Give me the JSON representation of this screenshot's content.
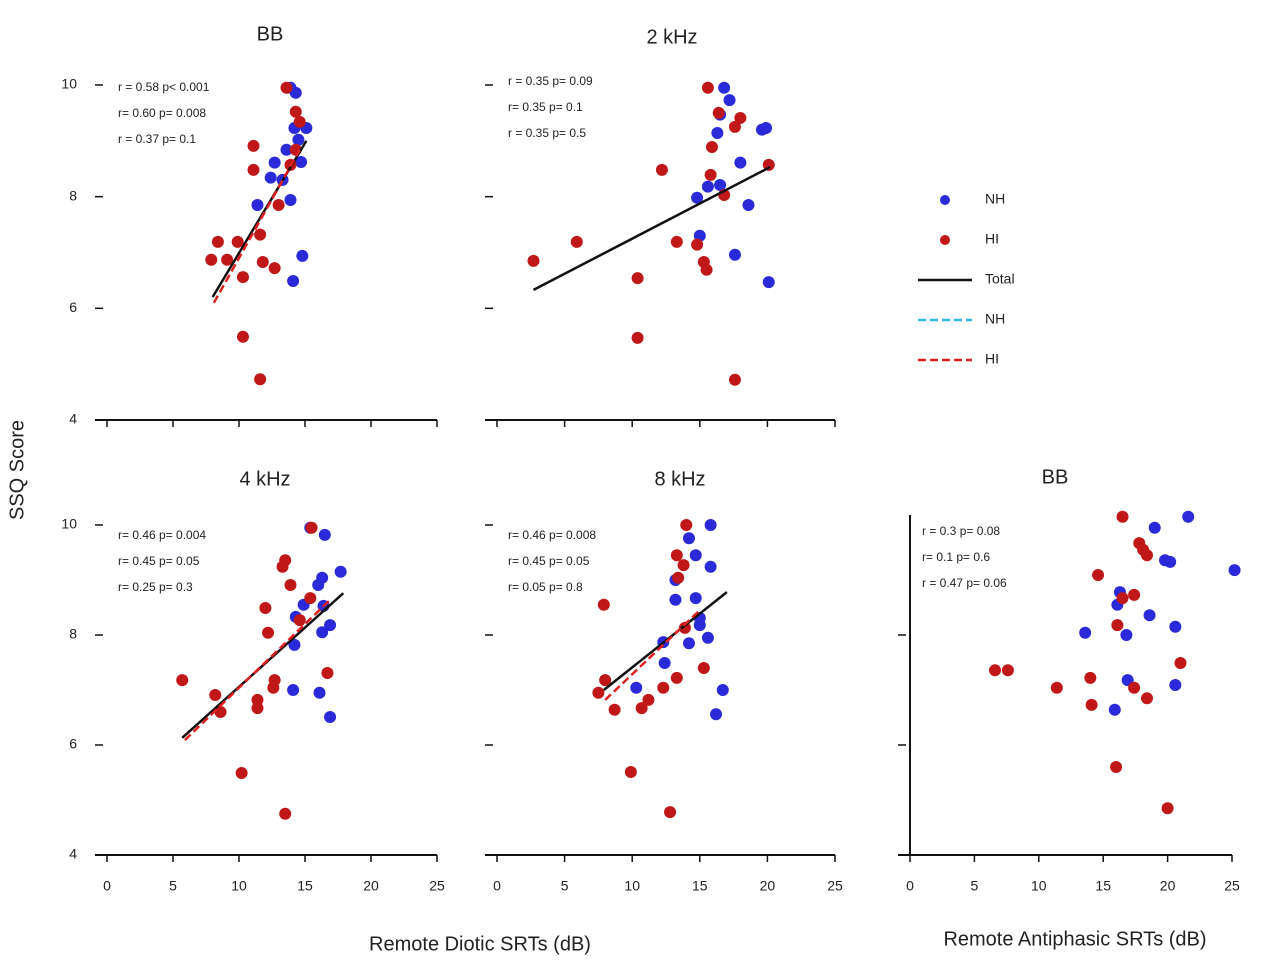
{
  "chart_data": [
    {
      "type": "scatter",
      "title": "BB",
      "xlim": [
        0,
        25
      ],
      "ylim": [
        4,
        10
      ],
      "xticks": [
        0,
        5,
        10,
        15,
        20,
        25
      ],
      "yticks": [
        4,
        6,
        8,
        10
      ],
      "show_xtick_labels": false,
      "show_ytick_labels": true,
      "y_axis_line": false,
      "annotations": [
        {
          "text": "r = 0.58 p< 0.001",
          "color": "#111111"
        },
        {
          "text": "r= 0.60 p= 0.008",
          "color": "#c01818"
        },
        {
          "text": "r = 0.37 p= 0.1",
          "color": "#2a2ad8"
        }
      ],
      "series": [
        {
          "name": "NH",
          "color": "#2a2ad8",
          "x": [
            13.9,
            14.3,
            14.2,
            15.1,
            14.5,
            13.6,
            14.7,
            12.7,
            12.4,
            13.3,
            11.4,
            13.9,
            14.8,
            14.1
          ],
          "y": [
            9.95,
            9.86,
            9.23,
            9.23,
            9.02,
            8.84,
            8.62,
            8.61,
            8.34,
            8.3,
            7.85,
            7.94,
            6.94,
            6.49
          ]
        },
        {
          "name": "HI",
          "color": "#c01818",
          "x": [
            13.6,
            14.3,
            14.6,
            14.3,
            11.1,
            11.1,
            13.9,
            13.0,
            8.4,
            9.9,
            11.6,
            7.9,
            9.1,
            11.8,
            10.3,
            12.7,
            10.3,
            11.6
          ],
          "y": [
            9.95,
            9.52,
            9.34,
            8.84,
            8.91,
            8.48,
            8.57,
            7.85,
            7.19,
            7.19,
            7.32,
            6.87,
            6.87,
            6.83,
            6.56,
            6.72,
            5.49,
            4.73
          ]
        }
      ],
      "fits": [
        {
          "name": "Total",
          "color": "#111111",
          "dash": false,
          "x": [
            8.0,
            15.1
          ],
          "y": [
            6.2,
            9.0
          ]
        },
        {
          "name": "HI",
          "color": "#e02020",
          "dash": true,
          "x": [
            8.1,
            14.6
          ],
          "y": [
            6.1,
            8.84
          ]
        }
      ]
    },
    {
      "type": "scatter",
      "title": "2 kHz",
      "xlim": [
        0,
        25
      ],
      "ylim": [
        4,
        10
      ],
      "xticks": [
        0,
        5,
        10,
        15,
        20,
        25
      ],
      "yticks": [
        4,
        6,
        8,
        10
      ],
      "show_xtick_labels": false,
      "show_ytick_labels": false,
      "y_axis_line": false,
      "annotations": [
        {
          "text": "r = 0.35 p= 0.09",
          "color": "#111111"
        },
        {
          "text": "r= 0.35 p= 0.1",
          "color": "#c01818"
        },
        {
          "text": "r = 0.35 p= 0.5",
          "color": "#2a2ad8"
        }
      ],
      "series": [
        {
          "name": "NH",
          "color": "#2a2ad8",
          "x": [
            16.8,
            17.2,
            16.5,
            16.3,
            19.6,
            19.9,
            18.0,
            15.6,
            16.5,
            14.8,
            18.6,
            15.0,
            17.6,
            20.1
          ],
          "y": [
            9.95,
            9.73,
            9.47,
            9.14,
            9.2,
            9.23,
            8.61,
            8.18,
            8.21,
            7.98,
            7.85,
            7.3,
            6.96,
            6.47
          ]
        },
        {
          "name": "HI",
          "color": "#c01818",
          "x": [
            15.6,
            16.4,
            18.0,
            17.6,
            15.9,
            20.1,
            12.2,
            15.8,
            16.8,
            5.9,
            13.3,
            14.8,
            2.7,
            15.3,
            15.5,
            10.4,
            10.4,
            17.6
          ],
          "y": [
            9.95,
            9.5,
            9.41,
            9.25,
            8.89,
            8.57,
            8.48,
            8.39,
            8.03,
            7.19,
            7.19,
            7.14,
            6.85,
            6.83,
            6.69,
            6.54,
            5.47,
            4.72
          ]
        }
      ],
      "fits": [
        {
          "name": "Total",
          "color": "#111111",
          "dash": false,
          "x": [
            2.7,
            20.2
          ],
          "y": [
            6.33,
            8.53
          ]
        }
      ]
    },
    {
      "type": "scatter",
      "title": "4 kHz",
      "xlim": [
        0,
        25
      ],
      "ylim": [
        4,
        10
      ],
      "xticks": [
        0,
        5,
        10,
        15,
        20,
        25
      ],
      "yticks": [
        4,
        6,
        8,
        10
      ],
      "show_xtick_labels": true,
      "show_ytick_labels": true,
      "y_axis_line": false,
      "annotations": [
        {
          "text": "r= 0.46 p= 0.004",
          "color": "#111111"
        },
        {
          "text": "r= 0.45 p= 0.05",
          "color": "#c01818"
        },
        {
          "text": "r= 0.25 p= 0.3",
          "color": "#2a2ad8"
        }
      ],
      "series": [
        {
          "name": "NH",
          "color": "#2a2ad8",
          "x": [
            15.4,
            16.5,
            17.7,
            16.3,
            16.0,
            14.9,
            16.4,
            14.3,
            16.9,
            16.3,
            14.2,
            14.1,
            16.1,
            16.9
          ],
          "y": [
            9.95,
            9.82,
            9.15,
            9.04,
            8.91,
            8.55,
            8.53,
            8.33,
            8.18,
            8.05,
            7.82,
            7.0,
            6.95,
            6.51
          ]
        },
        {
          "name": "HI",
          "color": "#c01818",
          "x": [
            15.5,
            13.5,
            13.3,
            13.9,
            15.4,
            12.0,
            12.2,
            14.6,
            16.7,
            5.7,
            12.7,
            8.2,
            12.6,
            8.6,
            11.4,
            11.4,
            10.2,
            13.5
          ],
          "y": [
            9.95,
            9.36,
            9.24,
            8.91,
            8.67,
            8.49,
            8.04,
            8.27,
            7.31,
            7.18,
            7.18,
            6.91,
            7.04,
            6.6,
            6.82,
            6.67,
            5.49,
            4.75
          ]
        }
      ],
      "fits": [
        {
          "name": "Total",
          "color": "#111111",
          "dash": false,
          "x": [
            5.7,
            17.9
          ],
          "y": [
            6.13,
            8.76
          ]
        },
        {
          "name": "HI",
          "color": "#e02020",
          "dash": true,
          "x": [
            5.9,
            16.9
          ],
          "y": [
            6.09,
            8.64
          ]
        }
      ]
    },
    {
      "type": "scatter",
      "title": "8 kHz",
      "xlim": [
        0,
        25
      ],
      "ylim": [
        4,
        10
      ],
      "xticks": [
        0,
        5,
        10,
        15,
        20,
        25
      ],
      "yticks": [
        4,
        6,
        8,
        10
      ],
      "show_xtick_labels": true,
      "show_ytick_labels": false,
      "y_axis_line": false,
      "annotations": [
        {
          "text": "r= 0.46 p= 0.008",
          "color": "#111111"
        },
        {
          "text": "r= 0.45 p= 0.05",
          "color": "#c01818"
        },
        {
          "text": "r= 0.05 p= 0.8",
          "color": "#2a2ad8"
        }
      ],
      "series": [
        {
          "name": "NH",
          "color": "#2a2ad8",
          "x": [
            15.8,
            14.2,
            15.8,
            14.7,
            13.2,
            14.7,
            13.2,
            15.0,
            12.3,
            15.0,
            15.6,
            14.2,
            12.4,
            16.7,
            10.3,
            16.2
          ],
          "y": [
            10.0,
            9.76,
            9.24,
            9.45,
            9.0,
            8.67,
            8.64,
            8.31,
            7.87,
            8.18,
            7.95,
            7.85,
            7.49,
            7.0,
            7.04,
            6.56
          ]
        },
        {
          "name": "HI",
          "color": "#c01818",
          "x": [
            14.0,
            13.3,
            13.8,
            13.4,
            7.9,
            13.9,
            15.3,
            13.3,
            8.0,
            7.5,
            12.3,
            8.7,
            11.2,
            10.7,
            9.9,
            12.8
          ],
          "y": [
            10.0,
            9.45,
            9.27,
            9.04,
            8.55,
            8.13,
            7.4,
            7.22,
            7.18,
            6.95,
            7.04,
            6.64,
            6.82,
            6.67,
            5.51,
            4.78
          ]
        }
      ],
      "fits": [
        {
          "name": "Total",
          "color": "#111111",
          "dash": false,
          "x": [
            7.9,
            17.0
          ],
          "y": [
            7.0,
            8.78
          ]
        },
        {
          "name": "HI",
          "color": "#e02020",
          "dash": true,
          "x": [
            8.0,
            15.0
          ],
          "y": [
            6.82,
            8.45
          ]
        }
      ]
    },
    {
      "type": "scatter",
      "title": "BB",
      "xlim": [
        0,
        25
      ],
      "ylim": [
        4,
        10
      ],
      "xticks": [
        0,
        5,
        10,
        15,
        20,
        25
      ],
      "yticks": [
        6,
        8
      ],
      "show_xtick_labels": true,
      "show_ytick_labels": false,
      "y_axis_line": true,
      "annotations": [
        {
          "text": "r = 0.3 p= 0.08",
          "color": "#111111"
        },
        {
          "text": "r= 0.1 p= 0.6",
          "color": "#c01818"
        },
        {
          "text": "r = 0.47 p= 0.06",
          "color": "#2a2ad8"
        }
      ],
      "series": [
        {
          "name": "NH",
          "color": "#2a2ad8",
          "x": [
            21.6,
            19.0,
            19.8,
            20.2,
            25.2,
            16.3,
            16.1,
            18.6,
            20.6,
            13.6,
            16.8,
            16.9,
            20.6,
            15.9
          ],
          "y": [
            10.15,
            9.95,
            9.36,
            9.33,
            9.18,
            8.78,
            8.55,
            8.36,
            8.15,
            8.04,
            8.0,
            7.18,
            7.09,
            6.64
          ]
        },
        {
          "name": "HI",
          "color": "#c01818",
          "x": [
            16.5,
            17.8,
            18.1,
            18.4,
            14.6,
            17.4,
            16.5,
            16.1,
            6.6,
            7.6,
            21.0,
            14.0,
            11.4,
            17.4,
            18.4,
            14.1,
            16.0,
            20.0
          ],
          "y": [
            10.15,
            9.67,
            9.55,
            9.45,
            9.09,
            8.73,
            8.67,
            8.18,
            7.36,
            7.36,
            7.49,
            7.22,
            7.04,
            7.04,
            6.85,
            6.73,
            5.6,
            4.85
          ]
        }
      ],
      "fits": []
    }
  ],
  "y_label": "SSQ Score",
  "x_label_diotic": "Remote Diotic SRTs (dB)",
  "x_label_antiphasic": "Remote Antiphasic SRTs (dB)",
  "legend": [
    {
      "name": "NH",
      "color": "#2a2ad8",
      "kind": "dot"
    },
    {
      "name": "HI",
      "color": "#c01818",
      "kind": "dot"
    },
    {
      "name": "Total",
      "color": "#111111",
      "kind": "line"
    },
    {
      "name": "NH",
      "color": "#30b8e8",
      "kind": "dash"
    },
    {
      "name": "HI",
      "color": "#e02020",
      "kind": "dash"
    }
  ]
}
